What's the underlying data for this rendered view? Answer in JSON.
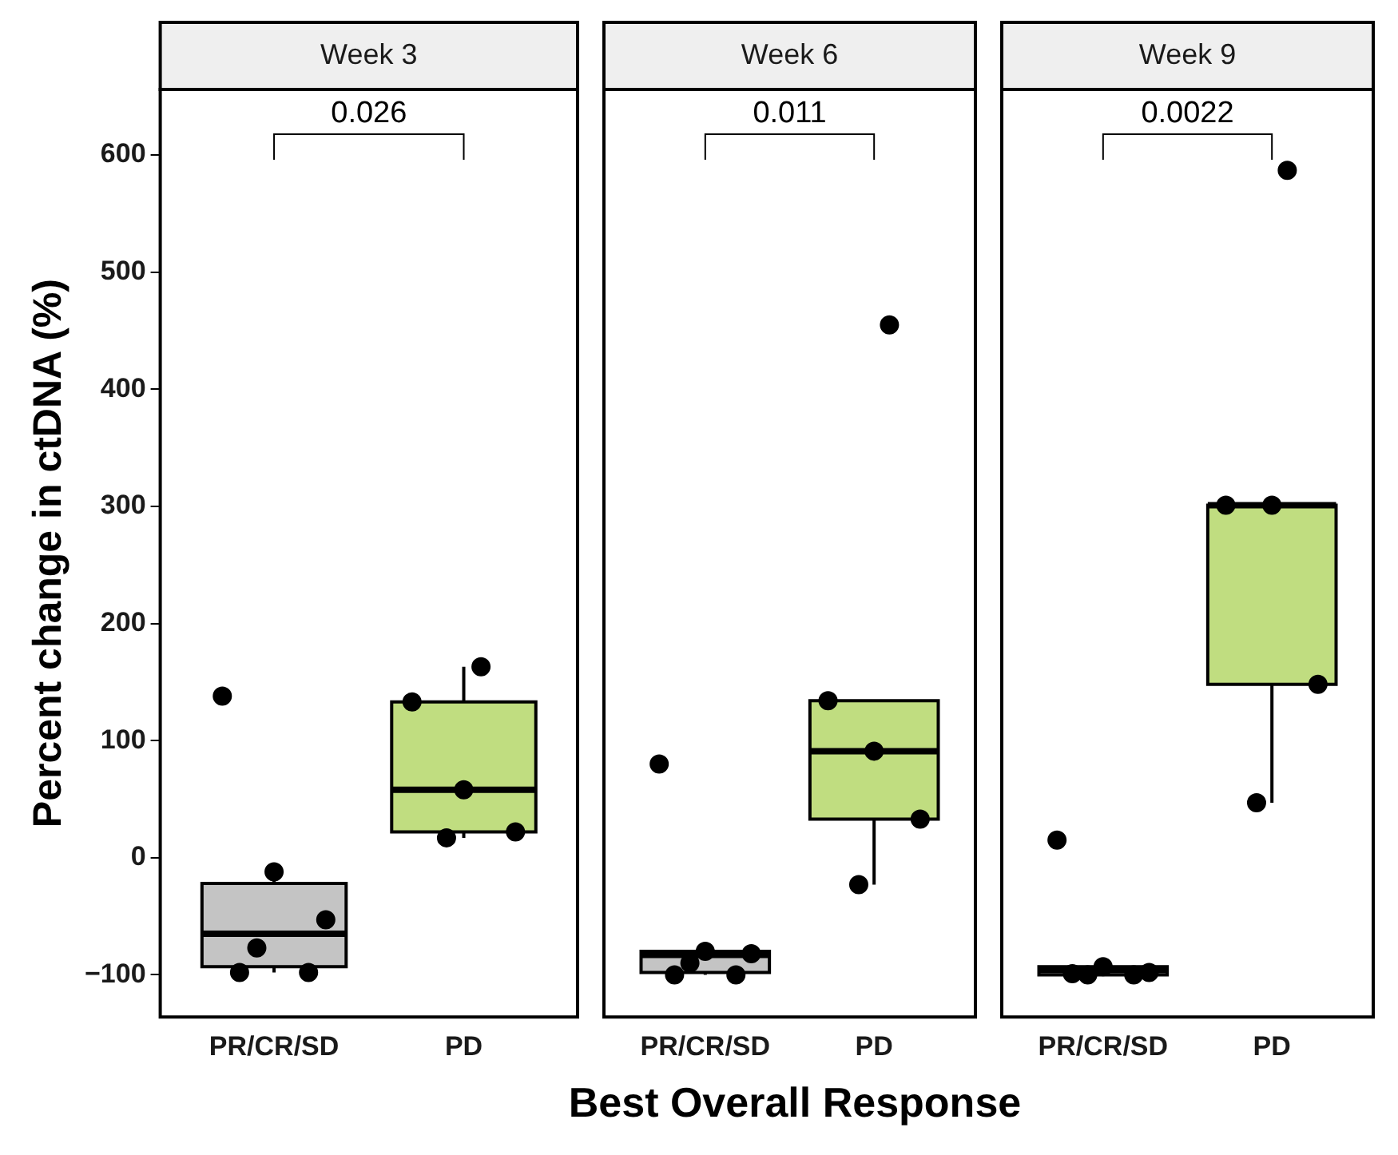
{
  "chart_data": [
    {
      "type": "box",
      "title": "Week 3",
      "ylabel": "Percent change in ctDNA (%)",
      "categories": [
        "PR/CR/SD",
        "PD"
      ],
      "colors": [
        "#c4c4c4",
        "#c0dd80"
      ],
      "boxes": [
        {
          "low": -98,
          "q1": -93,
          "median": -65,
          "q3": -22,
          "high": -12
        },
        {
          "low": 17,
          "q1": 22,
          "median": 58,
          "q3": 133,
          "high": 163
        }
      ],
      "series": [
        {
          "type": "scatter",
          "color": "#000000",
          "x": [
            "PR/CR/SD",
            "PR/CR/SD",
            "PR/CR/SD",
            "PR/CR/SD",
            "PR/CR/SD",
            "PR/CR/SD",
            "PD",
            "PD",
            "PD",
            "PD",
            "PD"
          ],
          "values": [
            138,
            -12,
            -53,
            -77,
            -98,
            -98,
            163,
            133,
            58,
            22,
            17
          ]
        }
      ],
      "ylim": [
        -136,
        656
      ],
      "yticks": [
        -100,
        0,
        100,
        200,
        300,
        400,
        500,
        600
      ],
      "annotations": [
        "0.026"
      ],
      "grid": false,
      "marker": "circle"
    },
    {
      "type": "box",
      "title": "Week 6",
      "xlabel": "Best Overall Response",
      "categories": [
        "PR/CR/SD",
        "PD"
      ],
      "colors": [
        "#c4c4c4",
        "#c0dd80"
      ],
      "boxes": [
        {
          "low": -100,
          "q1": -98,
          "median": -83,
          "q3": -80,
          "high": -80
        },
        {
          "low": -23,
          "q1": 33,
          "median": 91,
          "q3": 134,
          "high": 134
        }
      ],
      "series": [
        {
          "type": "scatter",
          "color": "#000000",
          "x": [
            "PR/CR/SD",
            "PR/CR/SD",
            "PR/CR/SD",
            "PR/CR/SD",
            "PR/CR/SD",
            "PR/CR/SD",
            "PD",
            "PD",
            "PD",
            "PD",
            "PD"
          ],
          "values": [
            80,
            -80,
            -82,
            -90,
            -100,
            -100,
            455,
            134,
            91,
            33,
            -23
          ]
        }
      ],
      "ylim": [
        -136,
        656
      ],
      "yticks": [
        -100,
        0,
        100,
        200,
        300,
        400,
        500,
        600
      ],
      "tick_labels": "x",
      "annotations": [
        "0.011"
      ],
      "grid": false,
      "marker": "circle"
    },
    {
      "type": "box",
      "title": "Week 9",
      "categories": [
        "PR/CR/SD",
        "PD"
      ],
      "colors": [
        "#c4c4c4",
        "#c0dd80"
      ],
      "boxes": [
        {
          "low": -100,
          "q1": -100,
          "median": -96,
          "q3": -93,
          "high": -93
        },
        {
          "low": 47,
          "q1": 148,
          "median": 301,
          "q3": 301,
          "high": 301
        }
      ],
      "series": [
        {
          "type": "scatter",
          "color": "#000000",
          "x": [
            "PR/CR/SD",
            "PR/CR/SD",
            "PR/CR/SD",
            "PR/CR/SD",
            "PR/CR/SD",
            "PR/CR/SD",
            "PD",
            "PD",
            "PD",
            "PD",
            "PD"
          ],
          "values": [
            15,
            -93,
            -98,
            -100,
            -100,
            -99,
            587,
            301,
            301,
            148,
            47
          ]
        }
      ],
      "ylim": [
        -136,
        656
      ],
      "yticks": [
        -100,
        0,
        100,
        200,
        300,
        400,
        500,
        600
      ],
      "tick_labels": "x",
      "annotations": [
        "0.0022"
      ],
      "grid": false,
      "marker": "circle"
    }
  ]
}
